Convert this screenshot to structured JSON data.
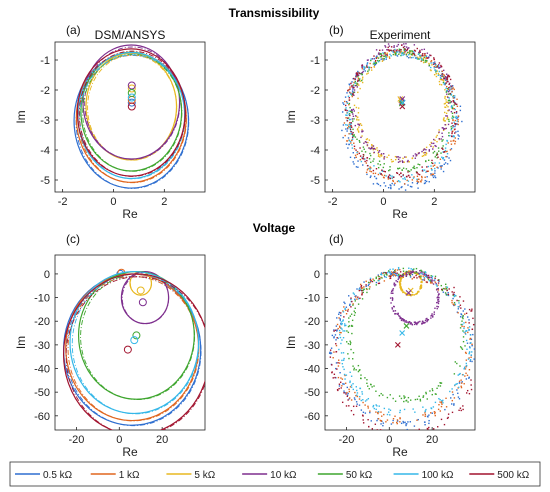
{
  "sections": {
    "top": "Transmissibility",
    "bottom": "Voltage"
  },
  "legend": [
    {
      "label": "0.5 kΩ",
      "color": "#2f6fd0"
    },
    {
      "label": "1 kΩ",
      "color": "#e0661f"
    },
    {
      "label": "5 kΩ",
      "color": "#e8b820"
    },
    {
      "label": "10 kΩ",
      "color": "#7e2f8e"
    },
    {
      "label": "50 kΩ",
      "color": "#3fa62f"
    },
    {
      "label": "100 kΩ",
      "color": "#35b7e8"
    },
    {
      "label": "500 kΩ",
      "color": "#a2142f"
    }
  ],
  "chart_data": [
    {
      "type": "scatter",
      "panel": "(a)",
      "title": "DSM/ANSYS",
      "xlabel": "Re",
      "ylabel": "Im",
      "xlim": [
        -2.3,
        3.6
      ],
      "ylim": [
        -5.4,
        -0.4
      ],
      "xticks": [
        -2,
        0,
        2
      ],
      "yticks": [
        -1,
        -2,
        -3,
        -4,
        -5
      ],
      "style": "model",
      "series": [
        {
          "legend": "0.5 kΩ",
          "center": [
            0.7,
            -3.02
          ],
          "radius": 2.25,
          "marker": [
            0.72,
            -2.42
          ]
        },
        {
          "legend": "1 kΩ",
          "center": [
            0.7,
            -2.92
          ],
          "radius": 2.16,
          "marker": [
            0.72,
            -2.33
          ]
        },
        {
          "legend": "5 kΩ",
          "center": [
            0.7,
            -2.55
          ],
          "radius": 1.78,
          "marker": [
            0.72,
            -1.95
          ]
        },
        {
          "legend": "10 kΩ",
          "center": [
            0.7,
            -2.4
          ],
          "radius": 1.9,
          "marker": [
            0.72,
            -1.85
          ]
        },
        {
          "legend": "50 kΩ",
          "center": [
            0.7,
            -2.72
          ],
          "radius": 1.98,
          "marker": [
            0.72,
            -2.1
          ]
        },
        {
          "legend": "100 kΩ",
          "center": [
            0.7,
            -2.85
          ],
          "radius": 2.1,
          "marker": [
            0.72,
            -2.25
          ]
        },
        {
          "legend": "500 kΩ",
          "center": [
            0.7,
            -2.75
          ],
          "radius": 2.12,
          "marker": [
            0.72,
            -2.55
          ]
        }
      ]
    },
    {
      "type": "scatter",
      "panel": "(b)",
      "title": "Experiment",
      "xlabel": "Re",
      "ylabel": "Im",
      "xlim": [
        -2.3,
        3.6
      ],
      "ylim": [
        -5.4,
        -0.4
      ],
      "xticks": [
        -2,
        0,
        2
      ],
      "yticks": [
        -1,
        -2,
        -3,
        -4,
        -5
      ],
      "style": "experiment",
      "series": [
        {
          "legend": "0.5 kΩ",
          "center": [
            0.7,
            -3.02
          ],
          "radius": 2.25,
          "marker": [
            0.72,
            -2.4
          ]
        },
        {
          "legend": "1 kΩ",
          "center": [
            0.7,
            -2.92
          ],
          "radius": 2.16,
          "marker": [
            0.7,
            -2.35
          ]
        },
        {
          "legend": "5 kΩ",
          "center": [
            0.7,
            -2.55
          ],
          "radius": 1.78,
          "marker": [
            0.66,
            -2.3
          ]
        },
        {
          "legend": "10 kΩ",
          "center": [
            0.7,
            -2.4
          ],
          "radius": 1.9,
          "marker": [
            0.74,
            -2.3
          ]
        },
        {
          "legend": "50 kΩ",
          "center": [
            0.7,
            -2.72
          ],
          "radius": 1.98,
          "marker": [
            0.72,
            -2.45
          ]
        },
        {
          "legend": "100 kΩ",
          "center": [
            0.7,
            -2.85
          ],
          "radius": 2.1,
          "marker": [
            0.76,
            -2.42
          ]
        },
        {
          "legend": "500 kΩ",
          "center": [
            0.7,
            -2.75
          ],
          "radius": 2.12,
          "marker": [
            0.74,
            -2.55
          ]
        }
      ]
    },
    {
      "type": "scatter",
      "panel": "(c)",
      "xlabel": "Re",
      "ylabel": "Im",
      "xlim": [
        -30,
        40
      ],
      "ylim": [
        -66,
        8
      ],
      "xticks": [
        -20,
        0,
        20
      ],
      "yticks": [
        0,
        -10,
        -20,
        -30,
        -40,
        -50,
        -60
      ],
      "style": "model",
      "series": [
        {
          "legend": "0.5 kΩ",
          "center": [
            6,
            -32
          ],
          "radius": 32,
          "marker": [
            0.5,
            0
          ]
        },
        {
          "legend": "1 kΩ",
          "center": [
            6,
            -31
          ],
          "radius": 31,
          "marker": [
            1.0,
            0.5
          ]
        },
        {
          "legend": "5 kΩ",
          "center": [
            10,
            -4
          ],
          "radius": 5,
          "marker": [
            10,
            -7
          ]
        },
        {
          "legend": "10 kΩ",
          "center": [
            12,
            -10
          ],
          "radius": 11,
          "marker": [
            11,
            -12
          ]
        },
        {
          "legend": "50 kΩ",
          "center": [
            8,
            -26
          ],
          "radius": 27,
          "marker": [
            8,
            -26
          ]
        },
        {
          "legend": "100 kΩ",
          "center": [
            7,
            -29
          ],
          "radius": 30,
          "marker": [
            7,
            -28
          ]
        },
        {
          "legend": "500 kΩ",
          "center": [
            8,
            -34
          ],
          "radius": 34,
          "marker": [
            4,
            -32
          ]
        }
      ]
    },
    {
      "type": "scatter",
      "panel": "(d)",
      "xlabel": "Re",
      "ylabel": "Im",
      "xlim": [
        -30,
        40
      ],
      "ylim": [
        -66,
        8
      ],
      "xticks": [
        -20,
        0,
        20
      ],
      "yticks": [
        0,
        -10,
        -20,
        -30,
        -40,
        -50,
        -60
      ],
      "style": "experiment",
      "series": [
        {
          "legend": "0.5 kΩ",
          "center": [
            6,
            -32
          ],
          "radius": 32,
          "marker": [
            1,
            0
          ]
        },
        {
          "legend": "1 kΩ",
          "center": [
            6,
            -31
          ],
          "radius": 31,
          "marker": [
            2,
            0
          ]
        },
        {
          "legend": "5 kΩ",
          "center": [
            10,
            -4
          ],
          "radius": 5,
          "marker": [
            10,
            -7
          ]
        },
        {
          "legend": "10 kΩ",
          "center": [
            12,
            -10
          ],
          "radius": 11,
          "marker": [
            9,
            -8
          ]
        },
        {
          "legend": "50 kΩ",
          "center": [
            8,
            -26
          ],
          "radius": 27,
          "marker": [
            8,
            -22
          ]
        },
        {
          "legend": "100 kΩ",
          "center": [
            7,
            -29
          ],
          "radius": 30,
          "marker": [
            6,
            -25
          ]
        },
        {
          "legend": "500 kΩ",
          "center": [
            8,
            -34
          ],
          "radius": 34,
          "marker": [
            4,
            -30
          ]
        }
      ]
    }
  ]
}
